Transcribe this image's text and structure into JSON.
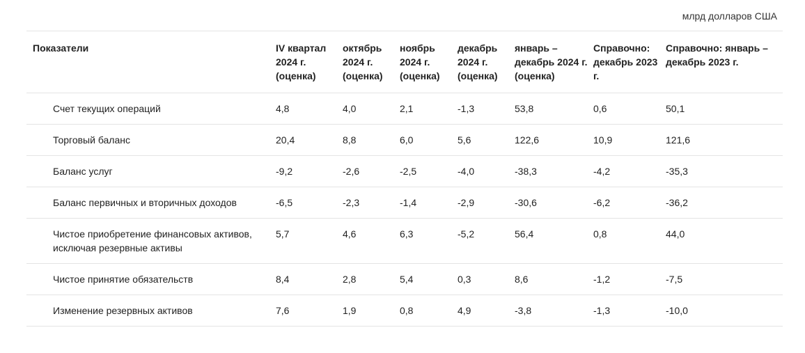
{
  "unit_note": "млрд долларов США",
  "table": {
    "headers": [
      "Показатели",
      "IV квартал 2024 г. (оценка)",
      "октябрь 2024 г. (оценка)",
      "ноябрь 2024 г. (оценка)",
      "декабрь 2024 г. (оценка)",
      "январь – декабрь 2024 г. (оценка)",
      "Справочно: декабрь 2023 г.",
      "Справочно: январь – декабрь 2023 г."
    ],
    "rows": [
      {
        "label": "Счет текущих операций",
        "values": [
          "4,8",
          "4,0",
          "2,1",
          "-1,3",
          "53,8",
          "0,6",
          "50,1"
        ]
      },
      {
        "label": "Торговый баланс",
        "values": [
          "20,4",
          "8,8",
          "6,0",
          "5,6",
          "122,6",
          "10,9",
          "121,6"
        ]
      },
      {
        "label": "Баланс услуг",
        "values": [
          "-9,2",
          "-2,6",
          "-2,5",
          "-4,0",
          "-38,3",
          "-4,2",
          "-35,3"
        ]
      },
      {
        "label": "Баланс первичных и вторичных доходов",
        "values": [
          "-6,5",
          "-2,3",
          "-1,4",
          "-2,9",
          "-30,6",
          "-6,2",
          "-36,2"
        ]
      },
      {
        "label": "Чистое приобретение финансовых активов, исключая резервные активы",
        "values": [
          "5,7",
          "4,6",
          "6,3",
          "-5,2",
          "56,4",
          "0,8",
          "44,0"
        ]
      },
      {
        "label": "Чистое принятие обязательств",
        "values": [
          "8,4",
          "2,8",
          "5,4",
          "0,3",
          "8,6",
          "-1,2",
          "-7,5"
        ]
      },
      {
        "label": "Изменение резервных активов",
        "values": [
          "7,6",
          "1,9",
          "0,8",
          "4,9",
          "-3,8",
          "-1,3",
          "-10,0"
        ]
      }
    ]
  }
}
